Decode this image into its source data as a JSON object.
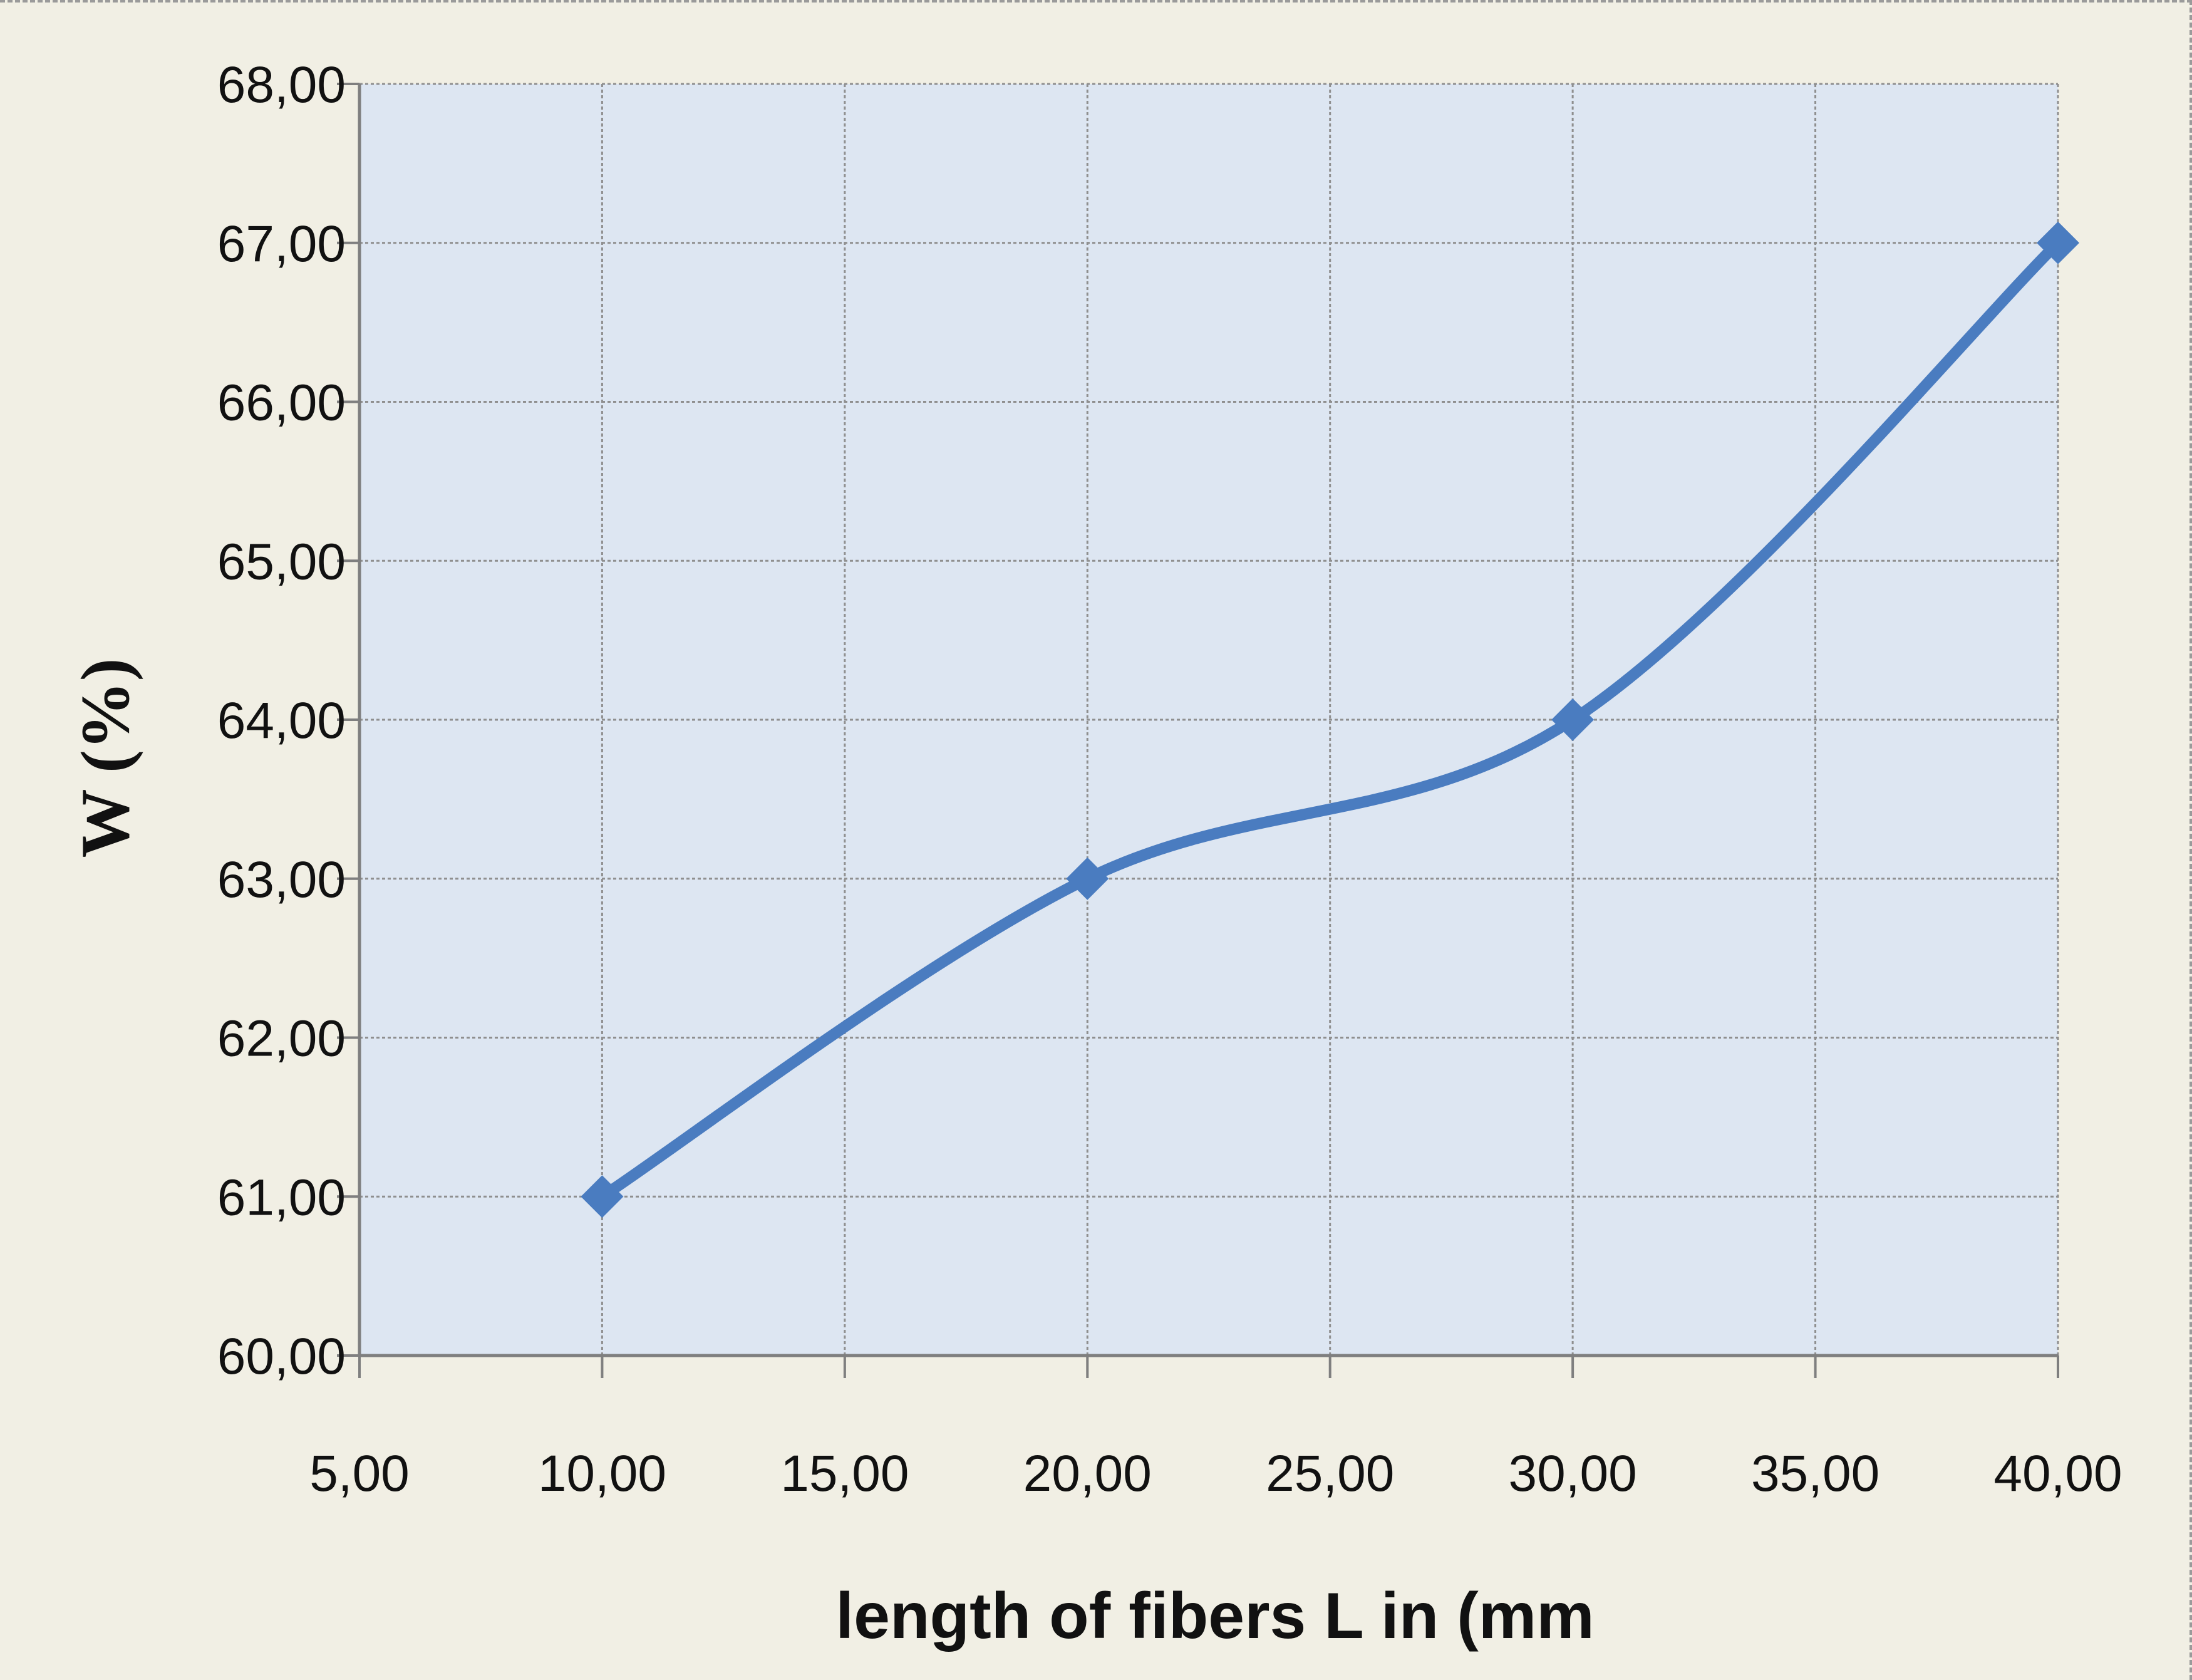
{
  "chart_data": {
    "type": "line",
    "title": "",
    "xlabel": "length of fibers L in (mm",
    "ylabel": "W (%)",
    "xlim": [
      5,
      40
    ],
    "ylim": [
      60,
      68
    ],
    "x_ticks": [
      "5,00",
      "10,00",
      "15,00",
      "20,00",
      "25,00",
      "30,00",
      "35,00",
      "40,00"
    ],
    "y_ticks": [
      "60,00",
      "61,00",
      "62,00",
      "63,00",
      "64,00",
      "65,00",
      "66,00",
      "67,00",
      "68,00"
    ],
    "grid": true,
    "legend": "none",
    "series": [
      {
        "x": [
          10,
          20,
          30,
          40
        ],
        "y": [
          61,
          63,
          64,
          67
        ],
        "marker": "diamond",
        "smooth": true
      }
    ],
    "colors": {
      "page_background": "#f1efe4",
      "plot_background": "#dde6f2",
      "series": "#4a7cc0",
      "gridline": "#8f8f8f",
      "axis": "#7f7f7f"
    }
  }
}
